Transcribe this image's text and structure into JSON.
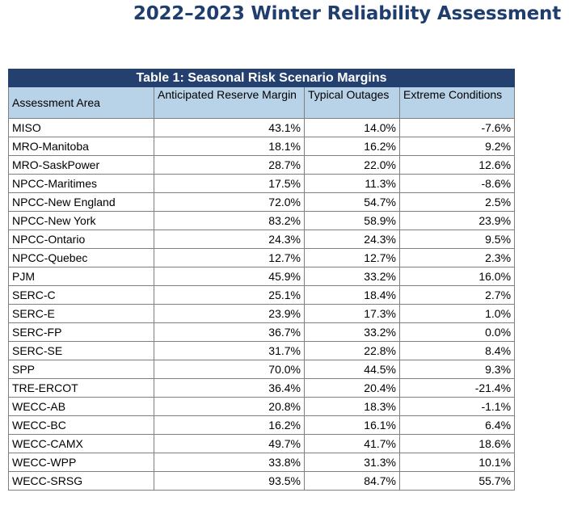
{
  "document": {
    "title": "2022–2023 Winter Reliability Assessment"
  },
  "table": {
    "caption": "Table 1: Seasonal Risk Scenario Margins",
    "headers": [
      "Assessment Area",
      "Anticipated Reserve Margin",
      "Typical Outages",
      "Extreme Conditions"
    ],
    "rows": [
      [
        "MISO",
        "43.1%",
        "14.0%",
        "-7.6%"
      ],
      [
        "MRO-Manitoba",
        "18.1%",
        "16.2%",
        "9.2%"
      ],
      [
        "MRO-SaskPower",
        "28.7%",
        "22.0%",
        "12.6%"
      ],
      [
        "NPCC-Maritimes",
        "17.5%",
        "11.3%",
        "-8.6%"
      ],
      [
        "NPCC-New England",
        "72.0%",
        "54.7%",
        "2.5%"
      ],
      [
        "NPCC-New York",
        "83.2%",
        "58.9%",
        "23.9%"
      ],
      [
        "NPCC-Ontario",
        "24.3%",
        "24.3%",
        "9.5%"
      ],
      [
        "NPCC-Quebec",
        "12.7%",
        "12.7%",
        "2.3%"
      ],
      [
        "PJM",
        "45.9%",
        "33.2%",
        "16.0%"
      ],
      [
        "SERC-C",
        "25.1%",
        "18.4%",
        "2.7%"
      ],
      [
        "SERC-E",
        "23.9%",
        "17.3%",
        "1.0%"
      ],
      [
        "SERC-FP",
        "36.7%",
        "33.2%",
        "0.0%"
      ],
      [
        "SERC-SE",
        "31.7%",
        "22.8%",
        "8.4%"
      ],
      [
        "SPP",
        "70.0%",
        "44.5%",
        "9.3%"
      ],
      [
        "TRE-ERCOT",
        "36.4%",
        "20.4%",
        "-21.4%"
      ],
      [
        "WECC-AB",
        "20.8%",
        "18.3%",
        "-1.1%"
      ],
      [
        "WECC-BC",
        "16.2%",
        "16.1%",
        "6.4%"
      ],
      [
        "WECC-CAMX",
        "49.7%",
        "41.7%",
        "18.6%"
      ],
      [
        "WECC-WPP",
        "33.8%",
        "31.3%",
        "10.1%"
      ],
      [
        "WECC-SRSG",
        "93.5%",
        "84.7%",
        "55.7%"
      ]
    ]
  },
  "colors": {
    "title": "#1f3e6e",
    "caption_bg": "#24406e",
    "header_bg": "#b8d2e7",
    "border": "#7f7f7f"
  }
}
